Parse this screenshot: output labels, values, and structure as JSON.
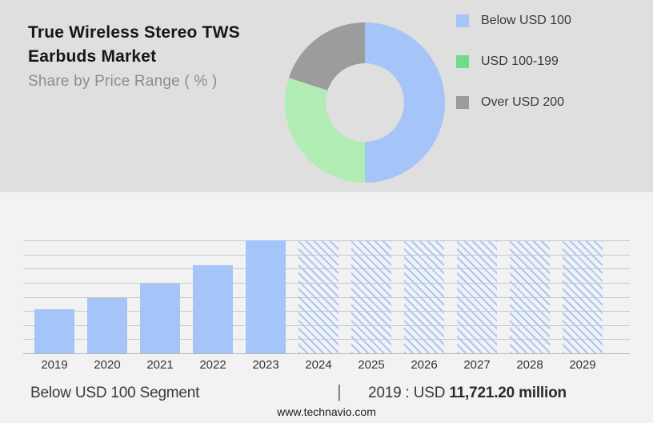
{
  "header": {
    "title_line1": "True Wireless Stereo TWS",
    "title_line2": "Earbuds Market",
    "subtitle": "Share by Price Range ( % )"
  },
  "colors": {
    "header_bg": "#DFDFDF",
    "page_bg": "#F2F2F3",
    "bar_blue": "#A5C4F8",
    "hatch_blue": "#A9C6F5",
    "gridline": "#C9C9C9",
    "axis_line": "#B5B5B5",
    "donut_colors": [
      "#A5C4F8",
      "#B1ECB5",
      "#9C9C9C"
    ],
    "legend_swatch_colors": [
      "#A5C4F8",
      "#6FDC8C",
      "#9B9B9B"
    ]
  },
  "legend": {
    "items": [
      {
        "label": "Below USD 100"
      },
      {
        "label": "USD 100-199"
      },
      {
        "label": "Over USD 200"
      }
    ]
  },
  "chart_data": [
    {
      "type": "pie",
      "subtype": "donut",
      "title": "True Wireless Stereo TWS Earbuds Market - Share by Price Range ( % )",
      "labels": [
        "Below USD 100",
        "USD 100-199",
        "Over USD 200"
      ],
      "values": [
        50,
        30,
        20
      ],
      "start_angle_deg": 0,
      "direction": "clockwise",
      "legend_position": "right"
    },
    {
      "type": "bar",
      "title": "Below USD 100 Segment",
      "categories": [
        "2019",
        "2020",
        "2021",
        "2022",
        "2023",
        "2024",
        "2025",
        "2026",
        "2027",
        "2028",
        "2029"
      ],
      "relative_heights": [
        0.39,
        0.49,
        0.62,
        0.78,
        1.0,
        1.0,
        1.0,
        1.0,
        1.0,
        1.0,
        1.0
      ],
      "bar_styles": [
        "solid",
        "solid",
        "solid",
        "solid",
        "solid",
        "hatched",
        "hatched",
        "hatched",
        "hatched",
        "hatched",
        "hatched"
      ],
      "solid_meaning": "historical (2019-2023)",
      "hatched_meaning": "forecast (2024-2029)",
      "known_values": {
        "2019": "USD 11,721.20 million"
      },
      "ylim": [
        0,
        1
      ],
      "grid": "horizontal",
      "gridline_count": 9,
      "xlabel": "",
      "ylabel": ""
    }
  ],
  "caption": {
    "left": "Below USD 100 Segment",
    "separator": "|",
    "right_prefix": "2019 : USD",
    "right_value": "11,721.20 million"
  },
  "footer": {
    "website": "www.technavio.com"
  }
}
